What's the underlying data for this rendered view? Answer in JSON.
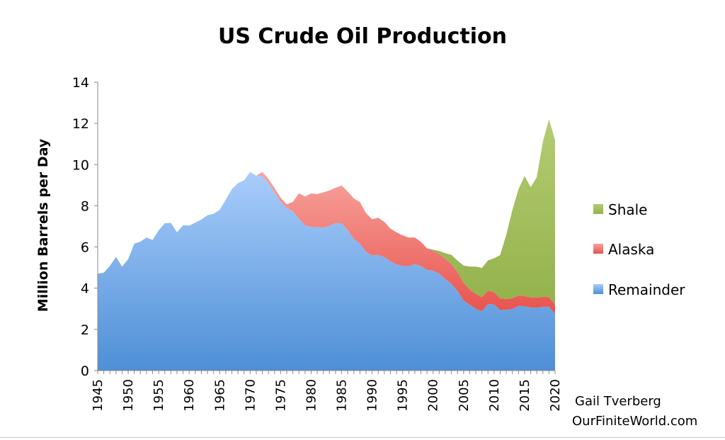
{
  "chart_data": {
    "type": "area",
    "stacked": true,
    "title": "US Crude Oil Production",
    "ylabel": "Million Barrels per Day",
    "xlabel": "",
    "ylim": [
      0,
      14
    ],
    "xlim": [
      1945,
      2020
    ],
    "yticks": [
      0,
      2,
      4,
      6,
      8,
      10,
      12,
      14
    ],
    "xticks": [
      1945,
      1950,
      1955,
      1960,
      1965,
      1970,
      1975,
      1980,
      1985,
      1990,
      1995,
      2000,
      2005,
      2010,
      2015,
      2020
    ],
    "grid": false,
    "legend_position": "right",
    "x": [
      1945,
      1946,
      1947,
      1948,
      1949,
      1950,
      1951,
      1952,
      1953,
      1954,
      1955,
      1956,
      1957,
      1958,
      1959,
      1960,
      1961,
      1962,
      1963,
      1964,
      1965,
      1966,
      1967,
      1968,
      1969,
      1970,
      1971,
      1972,
      1973,
      1974,
      1975,
      1976,
      1977,
      1978,
      1979,
      1980,
      1981,
      1982,
      1983,
      1984,
      1985,
      1986,
      1987,
      1988,
      1989,
      1990,
      1991,
      1992,
      1993,
      1994,
      1995,
      1996,
      1997,
      1998,
      1999,
      2000,
      2001,
      2002,
      2003,
      2004,
      2005,
      2006,
      2007,
      2008,
      2009,
      2010,
      2011,
      2012,
      2013,
      2014,
      2015,
      2016,
      2017,
      2018,
      2019,
      2020
    ],
    "series": [
      {
        "name": "Remainder",
        "color_top": "#a9cdfb",
        "color_bottom": "#4e8fd6",
        "values": [
          4.7,
          4.75,
          5.08,
          5.52,
          5.05,
          5.41,
          6.16,
          6.26,
          6.46,
          6.34,
          6.81,
          7.15,
          7.17,
          6.71,
          7.05,
          7.04,
          7.18,
          7.33,
          7.54,
          7.61,
          7.8,
          8.3,
          8.81,
          9.1,
          9.24,
          9.64,
          9.46,
          9.44,
          9.1,
          8.66,
          8.2,
          7.9,
          7.73,
          7.38,
          7.05,
          6.98,
          6.96,
          6.95,
          7.03,
          7.16,
          7.15,
          6.82,
          6.4,
          6.16,
          5.77,
          5.58,
          5.62,
          5.51,
          5.31,
          5.15,
          5.08,
          5.07,
          5.16,
          5.08,
          4.89,
          4.85,
          4.7,
          4.45,
          4.2,
          3.87,
          3.4,
          3.2,
          3.0,
          2.88,
          3.23,
          3.21,
          2.94,
          2.95,
          2.99,
          3.14,
          3.13,
          3.06,
          3.05,
          3.1,
          3.1,
          2.75
        ]
      },
      {
        "name": "Alaska",
        "color_top": "#f8a39d",
        "color_bottom": "#e8534e",
        "values": [
          0,
          0,
          0,
          0,
          0,
          0,
          0,
          0,
          0,
          0,
          0,
          0,
          0,
          0,
          0,
          0,
          0,
          0,
          0,
          0,
          0,
          0,
          0,
          0,
          0,
          0,
          0,
          0.2,
          0.2,
          0.2,
          0.19,
          0.17,
          0.46,
          1.23,
          1.4,
          1.62,
          1.61,
          1.7,
          1.71,
          1.72,
          1.83,
          1.87,
          1.96,
          2.02,
          1.87,
          1.77,
          1.8,
          1.71,
          1.58,
          1.56,
          1.48,
          1.39,
          1.3,
          1.17,
          1.05,
          0.97,
          0.96,
          0.98,
          0.97,
          0.91,
          0.86,
          0.74,
          0.72,
          0.68,
          0.65,
          0.6,
          0.56,
          0.53,
          0.52,
          0.5,
          0.48,
          0.49,
          0.49,
          0.48,
          0.47,
          0.44
        ]
      },
      {
        "name": "Shale",
        "color_top": "#b5cc73",
        "color_bottom": "#93b24b",
        "values": [
          0,
          0,
          0,
          0,
          0,
          0,
          0,
          0,
          0,
          0,
          0,
          0,
          0,
          0,
          0,
          0,
          0,
          0,
          0,
          0,
          0,
          0,
          0,
          0,
          0,
          0,
          0,
          0,
          0,
          0,
          0,
          0,
          0,
          0,
          0,
          0,
          0,
          0,
          0,
          0,
          0,
          0,
          0,
          0,
          0,
          0,
          0,
          0,
          0,
          0,
          0,
          0,
          0,
          0,
          0,
          0.05,
          0.15,
          0.27,
          0.45,
          0.56,
          0.84,
          1.11,
          1.33,
          1.42,
          1.47,
          1.64,
          2.11,
          3.12,
          4.29,
          5.16,
          5.84,
          5.35,
          5.85,
          7.54,
          8.63,
          8.0
        ]
      }
    ],
    "legend": [
      "Shale",
      "Alaska",
      "Remainder"
    ],
    "annotations": [
      "Gail Tverberg",
      "OurFiniteWorld.com"
    ]
  }
}
